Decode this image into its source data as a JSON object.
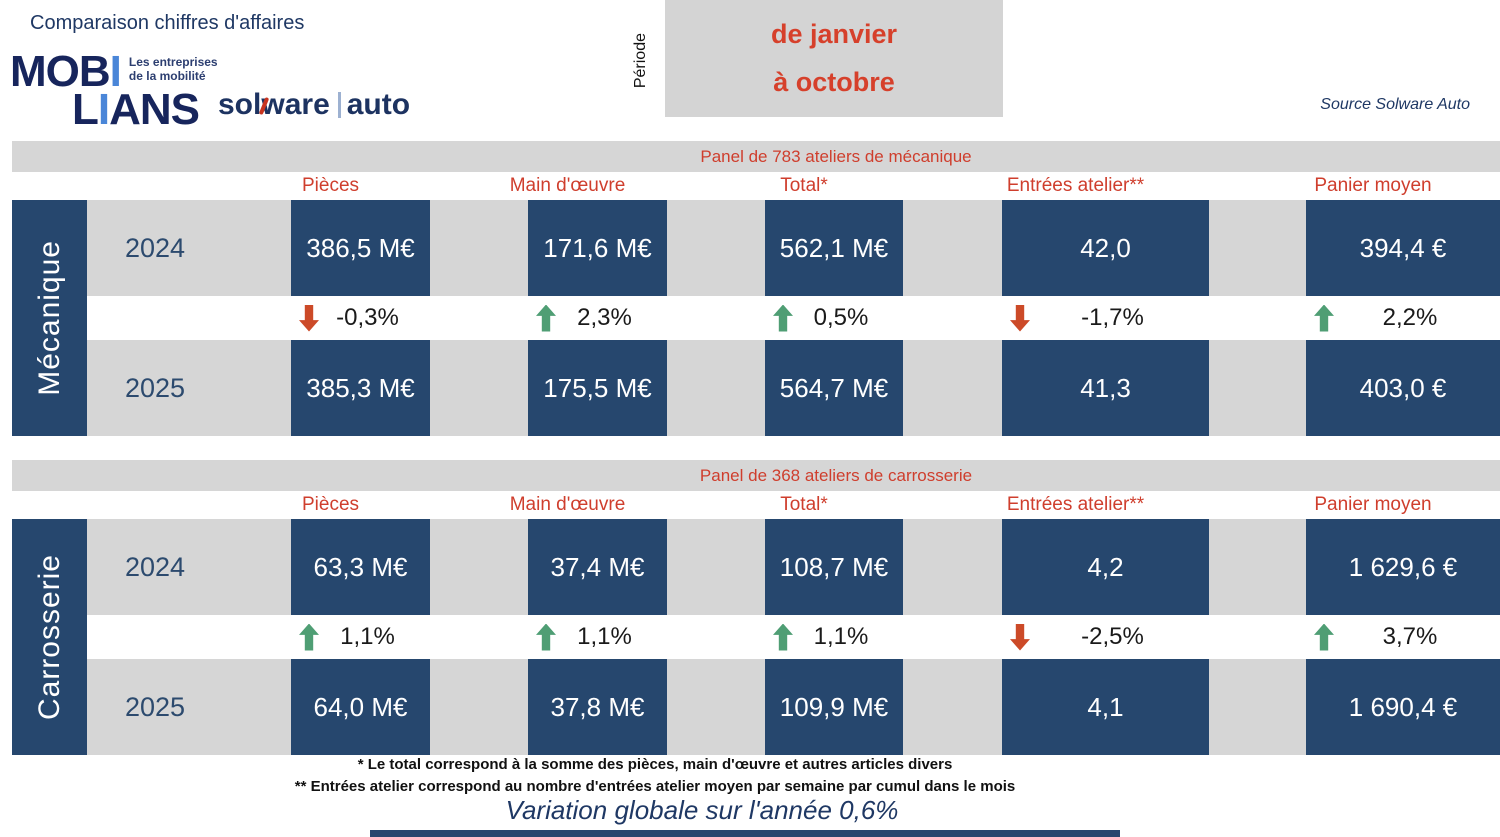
{
  "header": {
    "title": "Comparaison chiffres d'affaires",
    "period_label": "Période",
    "period_line1": "de janvier",
    "period_line2": "à octobre",
    "source": "Source Solware Auto",
    "logos": {
      "mobilians_m1": "MOB",
      "mobilians_i1": "I",
      "mobilians_m2": "L",
      "mobilians_i2": "I",
      "mobilians_m3": "ANS",
      "mobilians_tagline1": "Les entreprises",
      "mobilians_tagline2": "de la mobilité",
      "solware_part1": "sol",
      "solware_w": "w",
      "solware_part2": "are",
      "solware_part3": "auto"
    }
  },
  "columns": [
    "Pièces",
    "Main d'œuvre",
    "Total*",
    "Entrées atelier**",
    "Panier moyen"
  ],
  "panels": [
    {
      "title": "Panel de 783 ateliers de mécanique",
      "section_label": "Mécanique",
      "year_top": "2024",
      "year_bottom": "2025",
      "values_2024": [
        "386,5 M€",
        "171,6 M€",
        "562,1 M€",
        "42,0",
        "394,4 €"
      ],
      "variations": [
        {
          "dir": "down",
          "text": "-0,3%"
        },
        {
          "dir": "up",
          "text": "2,3%"
        },
        {
          "dir": "up",
          "text": "0,5%"
        },
        {
          "dir": "down",
          "text": "-1,7%"
        },
        {
          "dir": "up",
          "text": "2,2%"
        }
      ],
      "values_2025": [
        "385,3 M€",
        "175,5 M€",
        "564,7 M€",
        "41,3",
        "403,0 €"
      ]
    },
    {
      "title": "Panel de 368 ateliers de carrosserie",
      "section_label": "Carrosserie",
      "year_top": "2024",
      "year_bottom": "2025",
      "values_2024": [
        "63,3 M€",
        "37,4 M€",
        "108,7 M€",
        "4,2",
        "1 629,6 €"
      ],
      "variations": [
        {
          "dir": "up",
          "text": "1,1%"
        },
        {
          "dir": "up",
          "text": "1,1%"
        },
        {
          "dir": "up",
          "text": "1,1%"
        },
        {
          "dir": "down",
          "text": "-2,5%"
        },
        {
          "dir": "up",
          "text": "3,7%"
        }
      ],
      "values_2025": [
        "64,0 M€",
        "37,8 M€",
        "109,9 M€",
        "4,1",
        "1 690,4 €"
      ]
    }
  ],
  "footnotes": [
    "* Le total correspond à la somme des pièces, main d'œuvre et autres articles divers",
    "** Entrées atelier correspond au nombre d'entrées atelier moyen par semaine par cumul dans le mois"
  ],
  "summary": "Variation globale sur l'année 0,6%",
  "colors": {
    "navy": "#26476e",
    "navy_text": "#1f3864",
    "red": "#cf3e2d",
    "green_up": "#4f9e74",
    "red_down": "#cc4a28",
    "gray_band": "#d6d6d6"
  },
  "chart_data": [
    {
      "type": "table",
      "title": "Panel de 783 ateliers de mécanique",
      "period": "de janvier à octobre",
      "columns": [
        "Pièces (M€)",
        "Main d'œuvre (M€)",
        "Total (M€)",
        "Entrées atelier",
        "Panier moyen (€)"
      ],
      "rows": [
        {
          "label": "2024",
          "values": [
            386.5,
            171.6,
            562.1,
            42.0,
            394.4
          ]
        },
        {
          "label": "variation %",
          "values": [
            -0.3,
            2.3,
            0.5,
            -1.7,
            2.2
          ]
        },
        {
          "label": "2025",
          "values": [
            385.3,
            175.5,
            564.7,
            41.3,
            403.0
          ]
        }
      ]
    },
    {
      "type": "table",
      "title": "Panel de 368 ateliers de carrosserie",
      "period": "de janvier à octobre",
      "columns": [
        "Pièces (M€)",
        "Main d'œuvre (M€)",
        "Total (M€)",
        "Entrées atelier",
        "Panier moyen (€)"
      ],
      "rows": [
        {
          "label": "2024",
          "values": [
            63.3,
            37.4,
            108.7,
            4.2,
            1629.6
          ]
        },
        {
          "label": "variation %",
          "values": [
            1.1,
            1.1,
            1.1,
            -2.5,
            3.7
          ]
        },
        {
          "label": "2025",
          "values": [
            64.0,
            37.8,
            109.9,
            4.1,
            1690.4
          ]
        }
      ],
      "global_variation_pct": 0.6
    }
  ]
}
